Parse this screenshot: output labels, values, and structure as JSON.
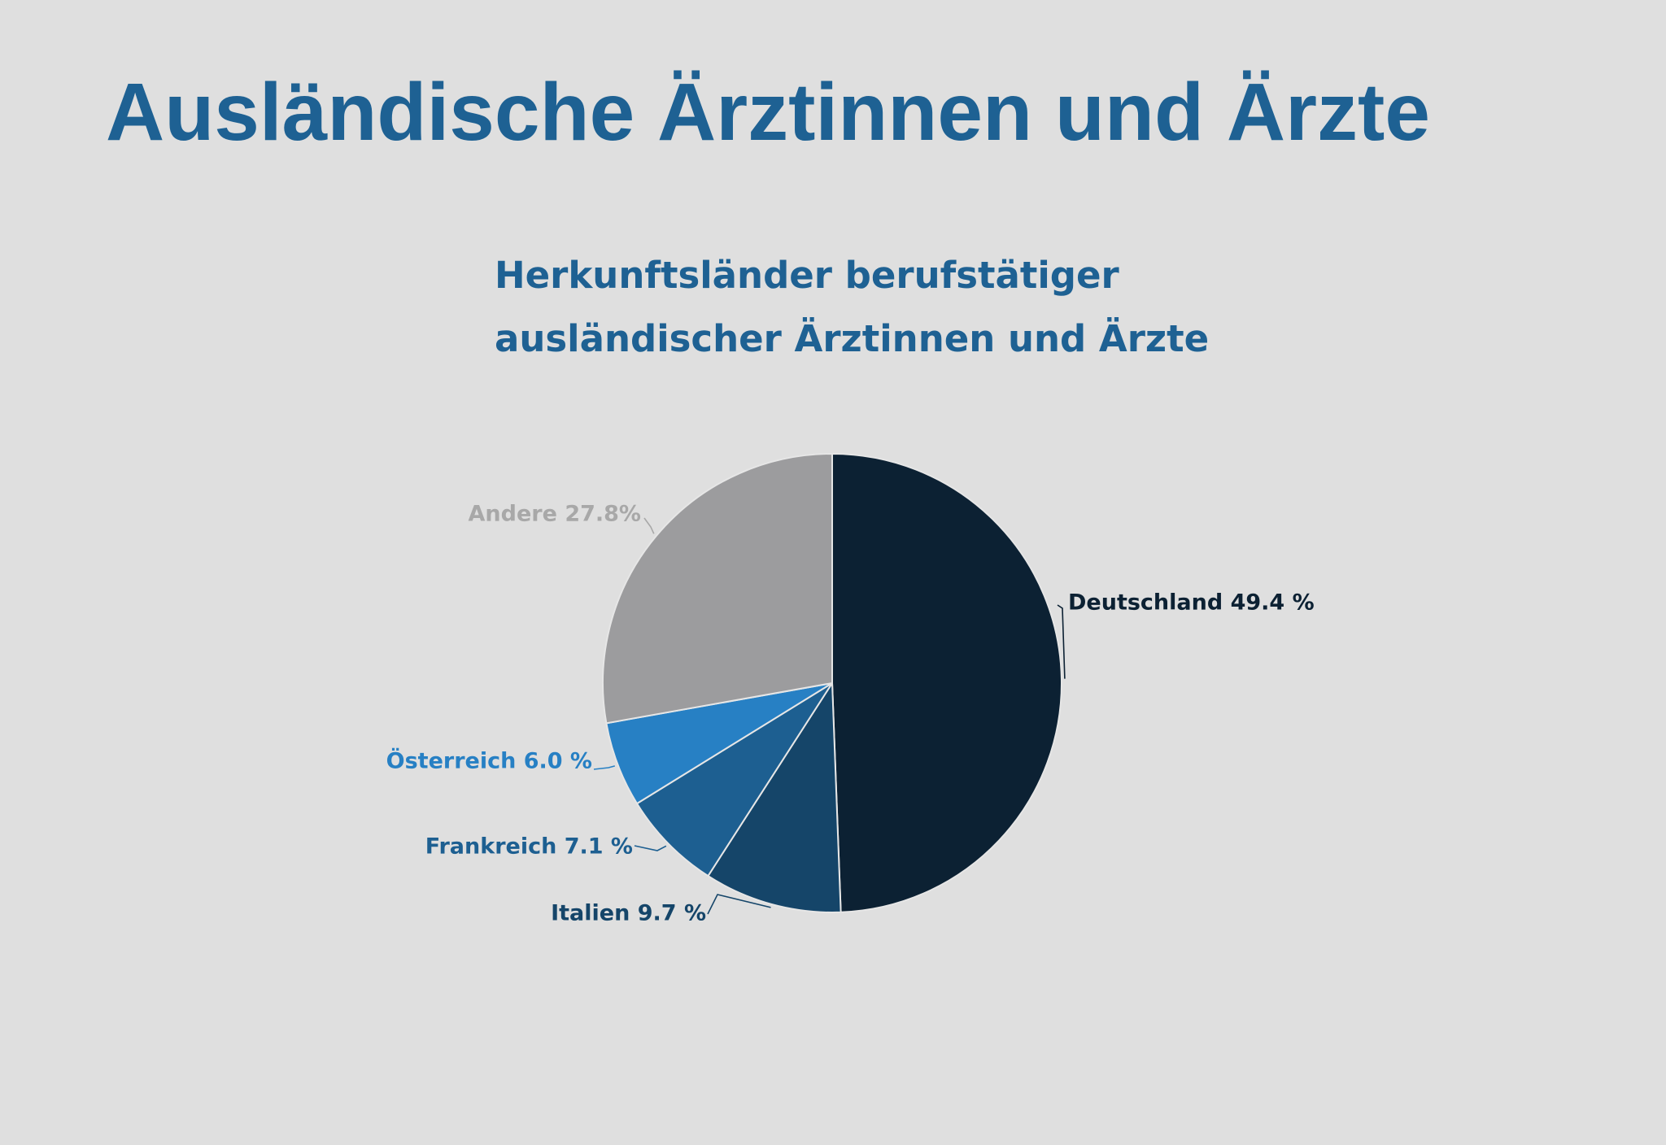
{
  "slide": {
    "title": "Ausländische Ärztinnen und Ärzte"
  },
  "chart_data": {
    "type": "pie",
    "title_lines": [
      "Herkunftsländer berufstätiger",
      "ausländischer Ärztinnen und Ärzte"
    ],
    "slices": [
      {
        "category": "Deutschland",
        "value": 49.4,
        "label": "Deutschland 49.4 %",
        "color": "#0c2133",
        "label_color": "#0c2133"
      },
      {
        "category": "Italien",
        "value": 9.7,
        "label": "Italien 9.7 %",
        "color": "#154569",
        "label_color": "#154569"
      },
      {
        "category": "Frankreich",
        "value": 7.1,
        "label": "Frankreich 7.1 %",
        "color": "#1d5f91",
        "label_color": "#1d5f91"
      },
      {
        "category": "Österreich",
        "value": 6.0,
        "label": "Österreich 6.0 %",
        "color": "#2780c4",
        "label_color": "#2780c4"
      },
      {
        "category": "Andere",
        "value": 27.8,
        "label": "Andere 27.8%",
        "color": "#9c9c9e",
        "label_color": "#a8a8a8"
      }
    ],
    "start": "top",
    "direction": "clockwise",
    "legend": "none",
    "slice_border_color": "#e6e6e6"
  }
}
